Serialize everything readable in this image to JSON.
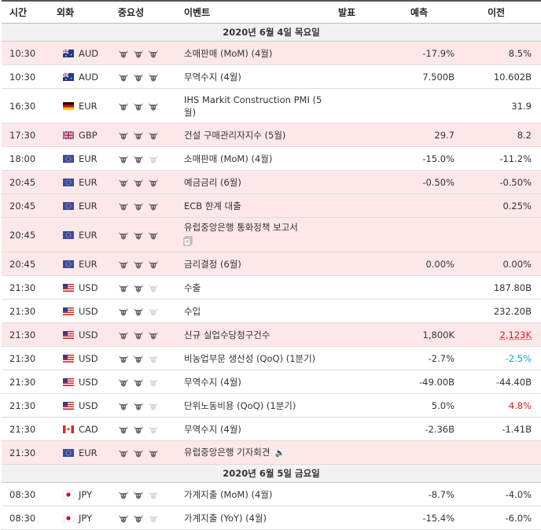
{
  "headers": {
    "time": "시간",
    "currency": "외화",
    "importance": "중요성",
    "event": "이벤트",
    "actual": "발표",
    "forecast": "예측",
    "previous": "이전"
  },
  "day1": "2020년 6월 4일 목요일",
  "day2": "2020년 6월 5일 금요일",
  "rows1": [
    {
      "time": "10:30",
      "cur": "AUD",
      "flag": "au",
      "imp": 3,
      "event": "소매판매 (MoM) (4월)",
      "actual": "",
      "forecast": "-17.9%",
      "previous": "8.5%",
      "hl": true
    },
    {
      "time": "10:30",
      "cur": "AUD",
      "flag": "au",
      "imp": 3,
      "event": "무역수지 (4월)",
      "actual": "",
      "forecast": "7.500B",
      "previous": "10.602B",
      "hl": false
    },
    {
      "time": "16:30",
      "cur": "EUR",
      "flag": "de",
      "imp": 3,
      "event": "IHS Markit Construction PMI (5월)",
      "actual": "",
      "forecast": "",
      "previous": "31.9",
      "hl": false
    },
    {
      "time": "17:30",
      "cur": "GBP",
      "flag": "gb",
      "imp": 3,
      "event": "건설 구매관리자지수 (5월)",
      "actual": "",
      "forecast": "29.7",
      "previous": "8.2",
      "hl": true
    },
    {
      "time": "18:00",
      "cur": "EUR",
      "flag": "eu",
      "imp": 2,
      "event": "소매판매 (MoM) (4월)",
      "actual": "",
      "forecast": "-15.0%",
      "previous": "-11.2%",
      "hl": false
    },
    {
      "time": "20:45",
      "cur": "EUR",
      "flag": "eu",
      "imp": 3,
      "event": "예금금리 (6월)",
      "actual": "",
      "forecast": "-0.50%",
      "previous": "-0.50%",
      "hl": true
    },
    {
      "time": "20:45",
      "cur": "EUR",
      "flag": "eu",
      "imp": 3,
      "event": "ECB 한계 대출",
      "actual": "",
      "forecast": "",
      "previous": "0.25%",
      "hl": true
    },
    {
      "time": "20:45",
      "cur": "EUR",
      "flag": "eu",
      "imp": 3,
      "event": "유럽중앙은행 통화정책 보고서",
      "actual": "",
      "forecast": "",
      "previous": "",
      "hl": true,
      "doc": true
    },
    {
      "time": "20:45",
      "cur": "EUR",
      "flag": "eu",
      "imp": 3,
      "event": "금리결정 (6월)",
      "actual": "",
      "forecast": "0.00%",
      "previous": "0.00%",
      "hl": true
    },
    {
      "time": "21:30",
      "cur": "USD",
      "flag": "us",
      "imp": 2,
      "event": "수출",
      "actual": "",
      "forecast": "",
      "previous": "187.80B",
      "hl": false
    },
    {
      "time": "21:30",
      "cur": "USD",
      "flag": "us",
      "imp": 2,
      "event": "수입",
      "actual": "",
      "forecast": "",
      "previous": "232.20B",
      "hl": false
    },
    {
      "time": "21:30",
      "cur": "USD",
      "flag": "us",
      "imp": 3,
      "event": "신규 실업수당청구건수",
      "actual": "",
      "forecast": "1,800K",
      "previous": "2,123K",
      "hl": true,
      "prevClass": "redu"
    },
    {
      "time": "21:30",
      "cur": "USD",
      "flag": "us",
      "imp": 2,
      "event": "비농업부문 생산성 (QoQ) (1분기)",
      "actual": "",
      "forecast": "-2.7%",
      "previous": "-2.5%",
      "hl": false,
      "prevClass": "blue"
    },
    {
      "time": "21:30",
      "cur": "USD",
      "flag": "us",
      "imp": 2,
      "event": "무역수지 (4월)",
      "actual": "",
      "forecast": "-49.00B",
      "previous": "-44.40B",
      "hl": false
    },
    {
      "time": "21:30",
      "cur": "USD",
      "flag": "us",
      "imp": 2,
      "event": "단위노동비용 (QoQ) (1분기)",
      "actual": "",
      "forecast": "5.0%",
      "previous": "4.8%",
      "hl": false,
      "prevClass": "red"
    },
    {
      "time": "21:30",
      "cur": "CAD",
      "flag": "ca",
      "imp": 2,
      "event": "무역수지 (4월)",
      "actual": "",
      "forecast": "-2.36B",
      "previous": "-1.41B",
      "hl": false
    },
    {
      "time": "21:30",
      "cur": "EUR",
      "flag": "eu",
      "imp": 3,
      "event": "유럽중앙은행 기자회견",
      "actual": "",
      "forecast": "",
      "previous": "",
      "hl": true,
      "speaker": true
    }
  ],
  "rows2": [
    {
      "time": "08:30",
      "cur": "JPY",
      "flag": "jp",
      "imp": 2,
      "event": "가계지출 (MoM) (4월)",
      "actual": "",
      "forecast": "-8.7%",
      "previous": "-4.0%",
      "hl": false
    },
    {
      "time": "08:30",
      "cur": "JPY",
      "flag": "jp",
      "imp": 2,
      "event": "가계지출 (YoY) (4월)",
      "actual": "",
      "forecast": "-15.4%",
      "previous": "-6.0%",
      "hl": false
    }
  ],
  "colors": {
    "highlight": "#fde8e9",
    "bull_on": "#7a6a6a",
    "bull_off": "#d8d8d8",
    "red": "#e02020",
    "blue": "#1a9fd0"
  }
}
